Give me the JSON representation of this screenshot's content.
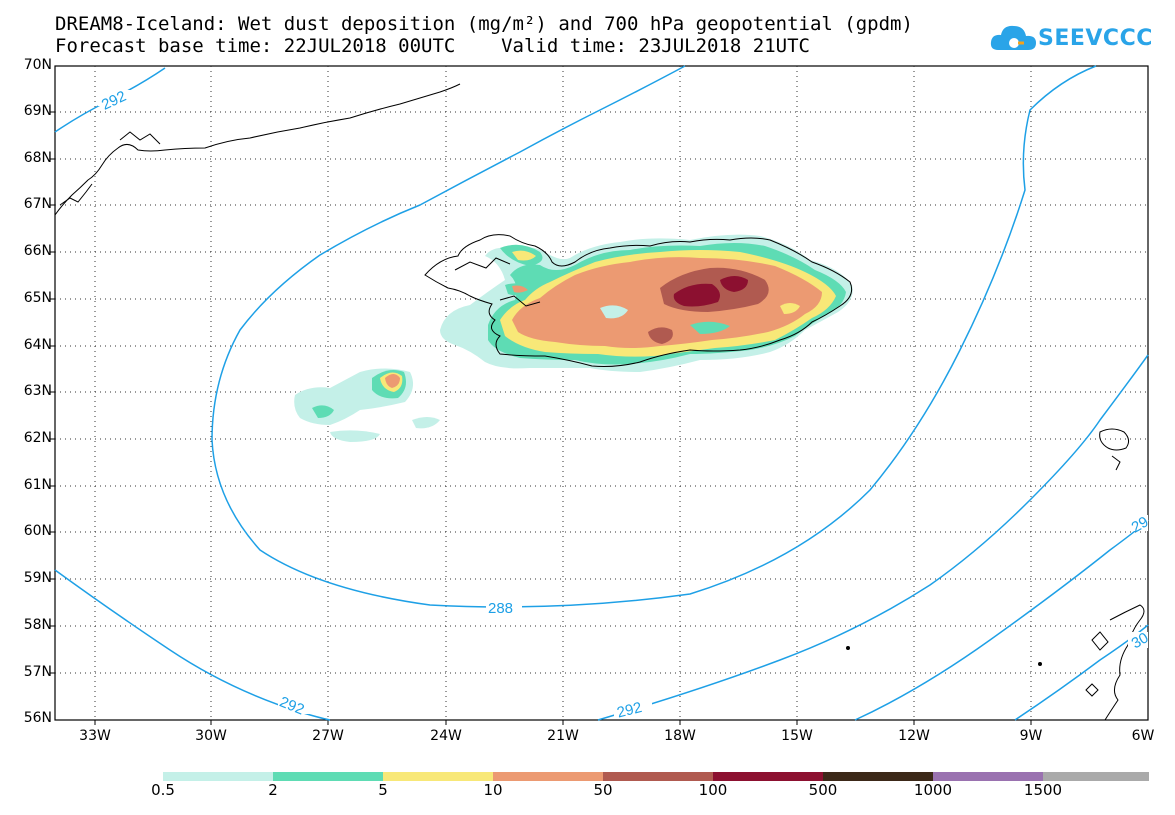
{
  "title": {
    "line1": "DREAM8-Iceland: Wet dust deposition (mg/m²) and 700 hPa geopotential (gpdm)",
    "line2": "Forecast base time: 22JUL2018 00UTC    Valid time: 23JUL2018 21UTC"
  },
  "logo": {
    "text": "SEEVCCC",
    "icon": "cloud-icon",
    "color": "#2aa4e8"
  },
  "axes": {
    "lat_labels": [
      "70N",
      "69N",
      "68N",
      "67N",
      "66N",
      "65N",
      "64N",
      "63N",
      "62N",
      "61N",
      "60N",
      "59N",
      "58N",
      "57N",
      "56N"
    ],
    "lon_labels": [
      "33W",
      "30W",
      "27W",
      "24W",
      "21W",
      "18W",
      "15W",
      "12W",
      "9W",
      "6W"
    ]
  },
  "contours": {
    "color": "#1ea0e6",
    "labels": [
      "292",
      "288",
      "292",
      "292",
      "29",
      "30"
    ]
  },
  "colorbar": {
    "labels": [
      "0.5",
      "2",
      "5",
      "10",
      "50",
      "100",
      "500",
      "1000",
      "1500"
    ],
    "colors": [
      "#c4f0e8",
      "#5edcb4",
      "#f8e878",
      "#ec9a72",
      "#b05a50",
      "#8c1030",
      "#3c2818",
      "#9a72b0",
      "#aaaaaa"
    ]
  }
}
